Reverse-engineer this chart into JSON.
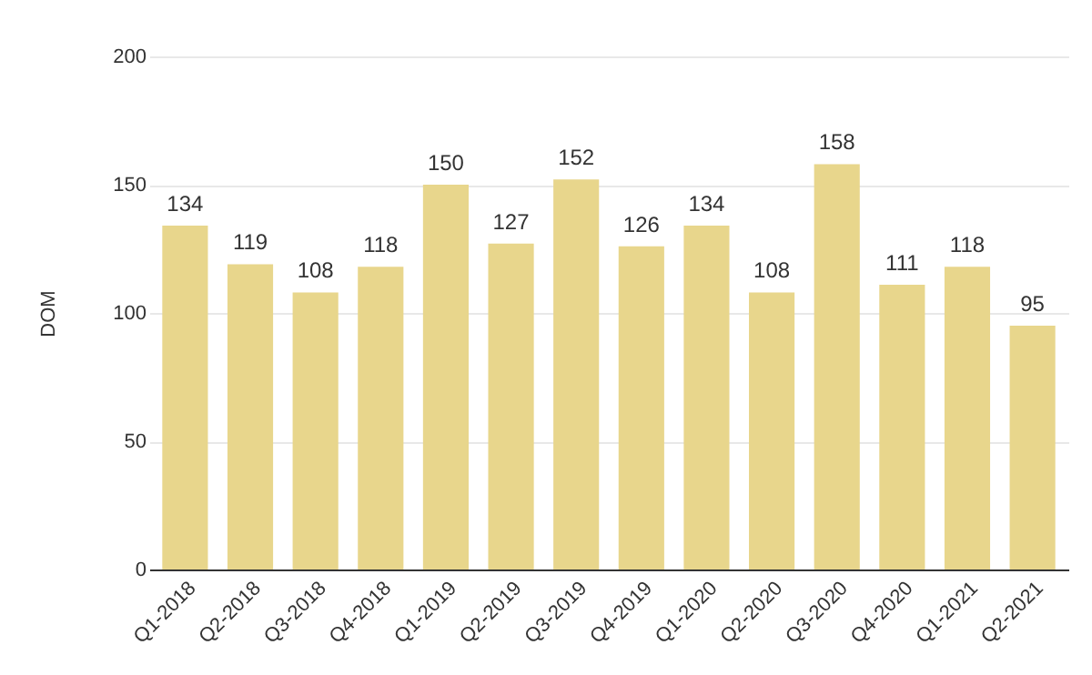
{
  "chart_data": {
    "type": "bar",
    "ylabel": "DOM",
    "categories": [
      "Q1-2018",
      "Q2-2018",
      "Q3-2018",
      "Q4-2018",
      "Q1-2019",
      "Q2-2019",
      "Q3-2019",
      "Q4-2019",
      "Q1-2020",
      "Q2-2020",
      "Q3-2020",
      "Q4-2020",
      "Q1-2021",
      "Q2-2021"
    ],
    "values": [
      134,
      119,
      108,
      118,
      150,
      127,
      152,
      126,
      134,
      108,
      158,
      111,
      118,
      95
    ],
    "color": "#e8d68c",
    "ylim": [
      0,
      200
    ],
    "yticks": [
      0,
      50,
      100,
      150,
      200
    ],
    "grid": "y",
    "data_labels": true
  }
}
